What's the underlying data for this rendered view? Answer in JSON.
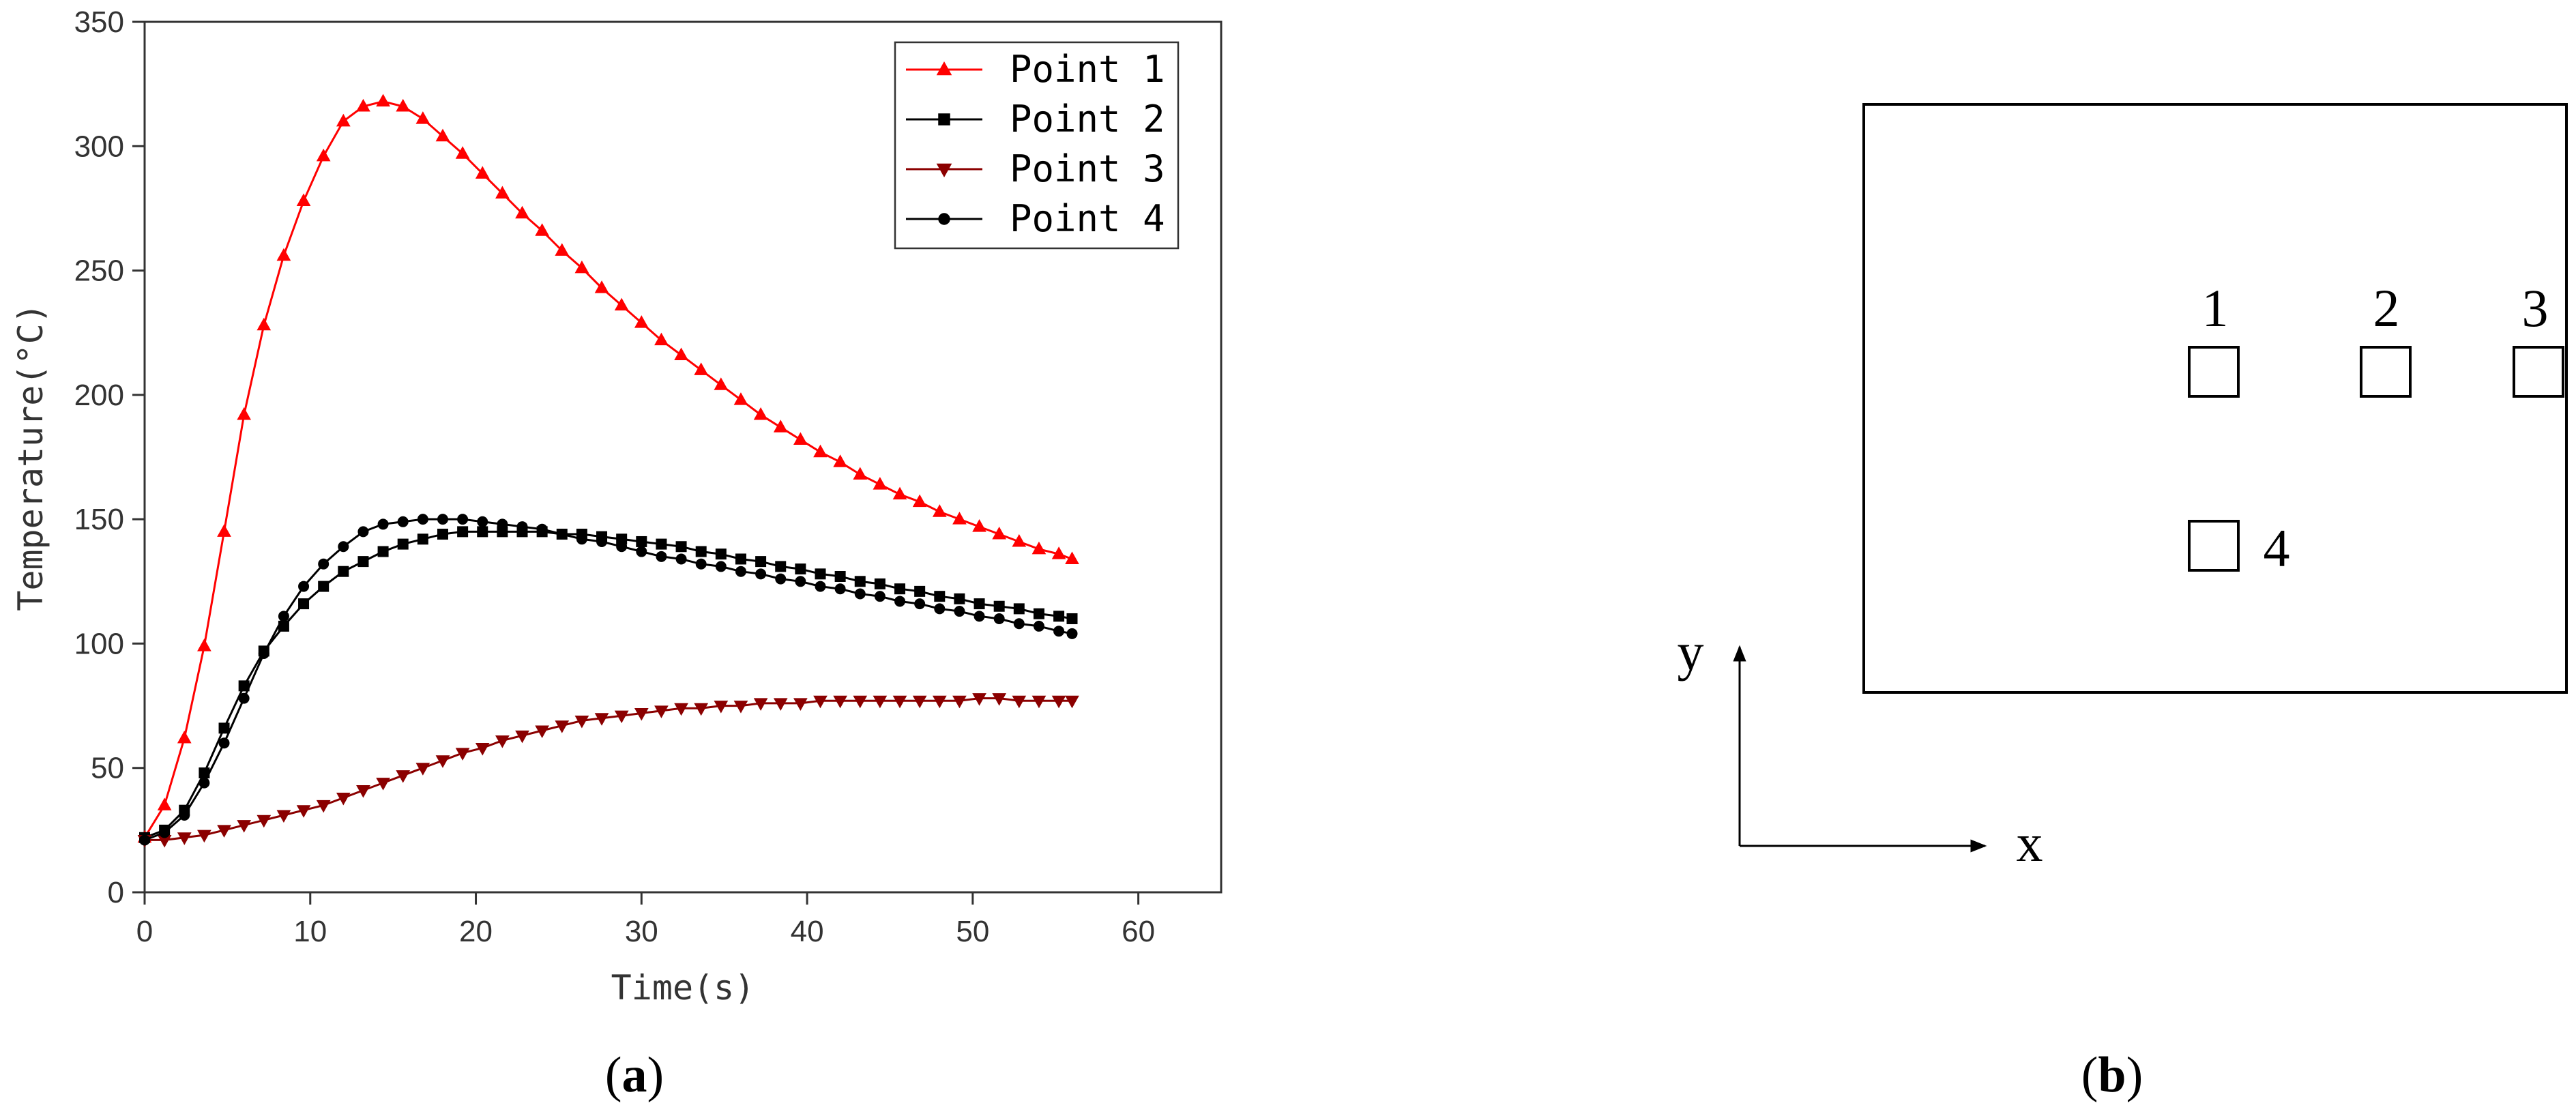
{
  "chart_data": {
    "type": "line",
    "title": "",
    "xlabel": "Time(s)",
    "ylabel": "Temperature(°C)",
    "xlim": [
      0,
      65
    ],
    "ylim": [
      0,
      350
    ],
    "xticks": [
      0,
      10,
      20,
      30,
      40,
      50,
      60
    ],
    "yticks": [
      0,
      50,
      100,
      150,
      200,
      250,
      300,
      350
    ],
    "grid": false,
    "legend_position": "top-right",
    "series": [
      {
        "name": "Point 1",
        "color": "#ff0000",
        "marker": "triangle-up",
        "x": [
          0,
          1.2,
          2.4,
          3.6,
          4.8,
          6,
          7.2,
          8.4,
          9.6,
          10.8,
          12,
          13.2,
          14.4,
          15.6,
          16.8,
          18,
          19.2,
          20.4,
          21.6,
          22.8,
          24,
          25.2,
          26.4,
          27.6,
          28.8,
          30,
          31.2,
          32.4,
          33.6,
          34.8,
          36,
          37.2,
          38.4,
          39.6,
          40.8,
          42,
          43.2,
          44.4,
          45.6,
          46.8,
          48,
          49.2,
          50.4,
          51.6,
          52.8,
          54,
          55.2,
          56
        ],
        "y": [
          22,
          35,
          62,
          99,
          145,
          192,
          228,
          256,
          278,
          296,
          310,
          316,
          318,
          316,
          311,
          304,
          297,
          289,
          281,
          273,
          266,
          258,
          251,
          243,
          236,
          229,
          222,
          216,
          210,
          204,
          198,
          192,
          187,
          182,
          177,
          173,
          168,
          164,
          160,
          157,
          153,
          150,
          147,
          144,
          141,
          138,
          136,
          134
        ]
      },
      {
        "name": "Point 2",
        "color": "#000000",
        "marker": "square",
        "x": [
          0,
          1.2,
          2.4,
          3.6,
          4.8,
          6,
          7.2,
          8.4,
          9.6,
          10.8,
          12,
          13.2,
          14.4,
          15.6,
          16.8,
          18,
          19.2,
          20.4,
          21.6,
          22.8,
          24,
          25.2,
          26.4,
          27.6,
          28.8,
          30,
          31.2,
          32.4,
          33.6,
          34.8,
          36,
          37.2,
          38.4,
          39.6,
          40.8,
          42,
          43.2,
          44.4,
          45.6,
          46.8,
          48,
          49.2,
          50.4,
          51.6,
          52.8,
          54,
          55.2,
          56
        ],
        "y": [
          22,
          25,
          33,
          48,
          66,
          83,
          97,
          107,
          116,
          123,
          129,
          133,
          137,
          140,
          142,
          144,
          145,
          145,
          145,
          145,
          145,
          144,
          144,
          143,
          142,
          141,
          140,
          139,
          137,
          136,
          134,
          133,
          131,
          130,
          128,
          127,
          125,
          124,
          122,
          121,
          119,
          118,
          116,
          115,
          114,
          112,
          111,
          110
        ]
      },
      {
        "name": "Point 3",
        "color": "#8b0000",
        "marker": "triangle-down",
        "x": [
          0,
          1.2,
          2.4,
          3.6,
          4.8,
          6,
          7.2,
          8.4,
          9.6,
          10.8,
          12,
          13.2,
          14.4,
          15.6,
          16.8,
          18,
          19.2,
          20.4,
          21.6,
          22.8,
          24,
          25.2,
          26.4,
          27.6,
          28.8,
          30,
          31.2,
          32.4,
          33.6,
          34.8,
          36,
          37.2,
          38.4,
          39.6,
          40.8,
          42,
          43.2,
          44.4,
          45.6,
          46.8,
          48,
          49.2,
          50.4,
          51.6,
          52.8,
          54,
          55.2,
          56
        ],
        "y": [
          21,
          21,
          22,
          23,
          25,
          27,
          29,
          31,
          33,
          35,
          38,
          41,
          44,
          47,
          50,
          53,
          56,
          58,
          61,
          63,
          65,
          67,
          69,
          70,
          71,
          72,
          73,
          74,
          74,
          75,
          75,
          76,
          76,
          76,
          77,
          77,
          77,
          77,
          77,
          77,
          77,
          77,
          78,
          78,
          77,
          77,
          77,
          77
        ]
      },
      {
        "name": "Point 4",
        "color": "#000000",
        "marker": "circle",
        "x": [
          0,
          1.2,
          2.4,
          3.6,
          4.8,
          6,
          7.2,
          8.4,
          9.6,
          10.8,
          12,
          13.2,
          14.4,
          15.6,
          16.8,
          18,
          19.2,
          20.4,
          21.6,
          22.8,
          24,
          25.2,
          26.4,
          27.6,
          28.8,
          30,
          31.2,
          32.4,
          33.6,
          34.8,
          36,
          37.2,
          38.4,
          39.6,
          40.8,
          42,
          43.2,
          44.4,
          45.6,
          46.8,
          48,
          49.2,
          50.4,
          51.6,
          52.8,
          54,
          55.2,
          56
        ],
        "y": [
          21,
          24,
          31,
          44,
          60,
          78,
          96,
          111,
          123,
          132,
          139,
          145,
          148,
          149,
          150,
          150,
          150,
          149,
          148,
          147,
          146,
          144,
          142,
          141,
          139,
          137,
          135,
          134,
          132,
          131,
          129,
          128,
          126,
          125,
          123,
          122,
          120,
          119,
          117,
          116,
          114,
          113,
          111,
          110,
          108,
          107,
          105,
          104
        ]
      }
    ]
  },
  "panel_a_label": "a",
  "panel_b_label": "b",
  "diagram": {
    "points": [
      {
        "label": "1"
      },
      {
        "label": "2"
      },
      {
        "label": "3"
      },
      {
        "label": "4"
      }
    ],
    "axis_x_label": "x",
    "axis_y_label": "y"
  }
}
